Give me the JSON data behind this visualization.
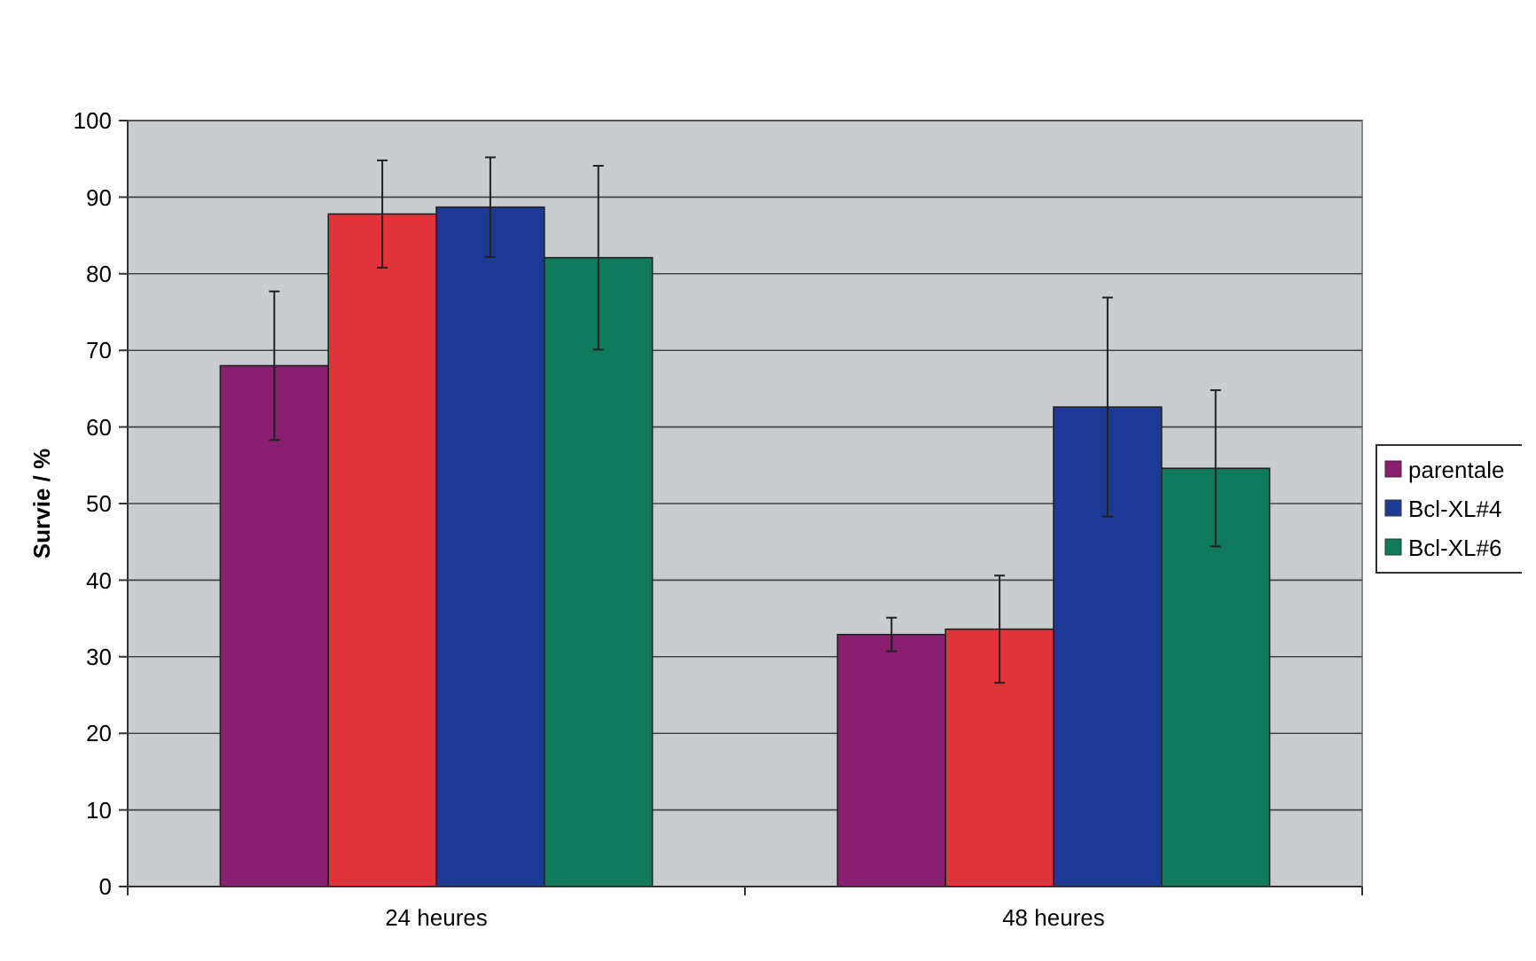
{
  "chart_data": {
    "type": "bar",
    "ylabel": "Survie / %",
    "categories": [
      "24 heures",
      "48 heures"
    ],
    "series": [
      {
        "name": "parentale",
        "color": "#8a1f72",
        "values": [
          68.0,
          32.9
        ],
        "errors": [
          9.7,
          2.2
        ]
      },
      {
        "color": "#e2333b",
        "values": [
          87.8,
          33.6
        ],
        "errors": [
          7,
          7
        ]
      },
      {
        "name": "Bcl-XL#4",
        "color": "#1c3a94",
        "values": [
          88.7,
          62.6
        ],
        "errors": [
          6.5,
          14.3
        ]
      },
      {
        "name": "Bcl-XL#6",
        "color": "#127a5c",
        "values": [
          82.1,
          54.6
        ],
        "errors": [
          12,
          10.2
        ]
      }
    ],
    "ylim": [
      0,
      100
    ],
    "yticks": [
      0,
      10,
      20,
      30,
      40,
      50,
      60,
      70,
      80,
      90,
      100
    ],
    "grid": "y",
    "legend": "right"
  }
}
